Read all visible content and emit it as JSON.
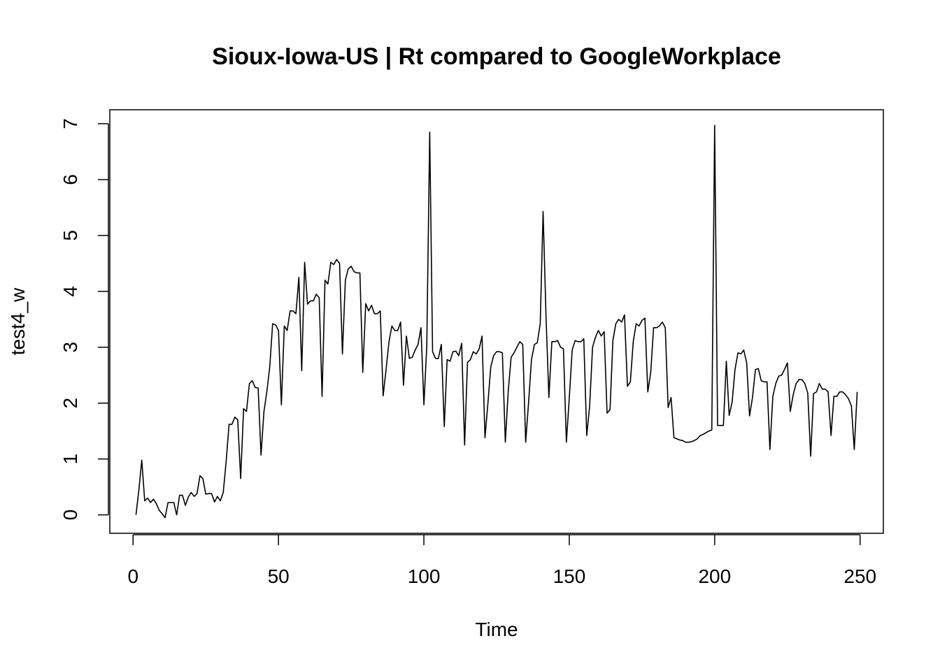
{
  "chart_data": {
    "type": "line",
    "title": "Sioux-Iowa-US | Rt compared to GoogleWorkplace",
    "xlabel": "Time",
    "ylabel": "test4_w",
    "xlim": [
      -8,
      258
    ],
    "ylim": [
      -0.33,
      7.25
    ],
    "xticks": [
      0,
      50,
      100,
      150,
      200,
      250
    ],
    "yticks": [
      0,
      1,
      2,
      3,
      4,
      5,
      6,
      7
    ],
    "grid": false,
    "legend": "none",
    "line_color": "#000000",
    "series": [
      {
        "x_start": 1,
        "values": [
          0.0,
          0.45,
          0.98,
          0.25,
          0.3,
          0.22,
          0.28,
          0.2,
          0.08,
          0.02,
          -0.05,
          0.22,
          0.22,
          0.22,
          0.0,
          0.35,
          0.35,
          0.17,
          0.32,
          0.4,
          0.33,
          0.38,
          0.7,
          0.65,
          0.37,
          0.38,
          0.38,
          0.23,
          0.33,
          0.25,
          0.4,
          0.95,
          1.62,
          1.62,
          1.75,
          1.7,
          0.65,
          1.9,
          1.85,
          2.35,
          2.4,
          2.28,
          2.27,
          1.07,
          1.85,
          2.2,
          2.65,
          3.42,
          3.4,
          3.3,
          1.97,
          3.38,
          3.3,
          3.65,
          3.65,
          3.6,
          4.25,
          2.58,
          4.52,
          3.77,
          3.83,
          3.83,
          3.95,
          3.88,
          2.12,
          4.2,
          4.13,
          4.52,
          4.48,
          4.57,
          4.5,
          2.88,
          4.2,
          4.4,
          4.45,
          4.35,
          4.33,
          4.33,
          2.55,
          3.78,
          3.65,
          3.75,
          3.6,
          3.6,
          3.65,
          2.13,
          2.6,
          3.1,
          3.38,
          3.3,
          3.3,
          3.45,
          2.32,
          3.2,
          2.8,
          2.82,
          2.95,
          3.05,
          3.35,
          1.97,
          3.02,
          6.85,
          2.92,
          2.8,
          2.8,
          3.05,
          1.58,
          2.78,
          2.75,
          2.92,
          2.93,
          2.85,
          3.07,
          1.25,
          2.73,
          2.78,
          2.92,
          2.88,
          2.97,
          3.2,
          1.38,
          1.98,
          2.65,
          2.85,
          2.92,
          2.92,
          2.9,
          1.3,
          2.2,
          2.82,
          2.9,
          3.0,
          3.1,
          3.05,
          1.3,
          2.0,
          2.78,
          3.05,
          3.08,
          3.42,
          5.43,
          3.55,
          2.1,
          3.1,
          3.1,
          3.12,
          3.0,
          2.97,
          1.3,
          2.08,
          2.95,
          3.12,
          3.1,
          3.1,
          3.15,
          1.42,
          1.95,
          3.0,
          3.18,
          3.3,
          3.2,
          3.28,
          1.82,
          1.88,
          3.12,
          3.42,
          3.5,
          3.45,
          3.58,
          2.3,
          2.38,
          3.1,
          3.42,
          3.38,
          3.48,
          3.52,
          2.2,
          2.55,
          3.35,
          3.35,
          3.38,
          3.45,
          3.35,
          1.92,
          2.1,
          1.38,
          1.36,
          1.34,
          1.33,
          1.3,
          1.3,
          1.31,
          1.33,
          1.36,
          1.42,
          1.44,
          1.47,
          1.5,
          1.52,
          6.97,
          1.6,
          1.6,
          1.6,
          2.75,
          1.78,
          2.02,
          2.6,
          2.9,
          2.88,
          2.95,
          2.72,
          1.77,
          2.1,
          2.6,
          2.62,
          2.4,
          2.38,
          2.38,
          1.17,
          2.12,
          2.35,
          2.48,
          2.5,
          2.6,
          2.72,
          1.85,
          2.15,
          2.35,
          2.42,
          2.42,
          2.35,
          2.18,
          1.05,
          2.17,
          2.2,
          2.35,
          2.25,
          2.25,
          2.2,
          1.42,
          2.12,
          2.12,
          2.2,
          2.2,
          2.15,
          2.08,
          1.95,
          1.17,
          2.2
        ]
      }
    ]
  }
}
